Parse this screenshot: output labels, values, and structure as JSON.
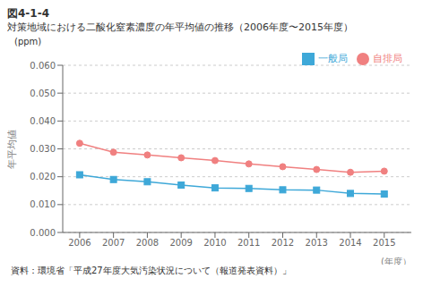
{
  "chart_data": {
    "type": "line",
    "title": "図4-1-4",
    "subtitle": "対策地域における二酸化窒素濃度の年平均値の推移（2006年度〜2015年度）",
    "x_label": "(年度）",
    "y_label": "年平均値",
    "annotations": [
      "(ppm)",
      "資料：環境省「平成27年度大気汚染状況について（報道発表資料）」"
    ],
    "x": [
      2006,
      2007,
      2008,
      2009,
      2010,
      2011,
      2012,
      2013,
      2014,
      2015
    ],
    "series": [
      {
        "name": "一般局",
        "color": "#3ea8d8",
        "marker": "square",
        "values": [
          0.0207,
          0.019,
          0.0182,
          0.017,
          0.016,
          0.0158,
          0.0153,
          0.0152,
          0.014,
          0.0138
        ]
      },
      {
        "name": "自排局",
        "color": "#f08080",
        "marker": "circle",
        "values": [
          0.032,
          0.0288,
          0.0278,
          0.0268,
          0.0258,
          0.0246,
          0.0236,
          0.0226,
          0.0216,
          0.022
        ]
      }
    ],
    "xlim": [
      2005.5,
      2015.8
    ],
    "xticks": [
      2006,
      2007,
      2008,
      2009,
      2010,
      2011,
      2012,
      2013,
      2014,
      2015
    ],
    "ylim": [
      0,
      0.06
    ],
    "yticks": [
      {
        "value": 0,
        "label": "0.000"
      },
      {
        "value": 0.01,
        "label": "0.010"
      },
      {
        "value": 0.02,
        "label": "0.020"
      },
      {
        "value": 0.03,
        "label": "0.030"
      },
      {
        "value": 0.04,
        "label": "0.040"
      },
      {
        "value": 0.05,
        "label": "0.050"
      },
      {
        "value": 0.06,
        "label": "0.060"
      }
    ],
    "grid": true,
    "legend": "upper right"
  }
}
